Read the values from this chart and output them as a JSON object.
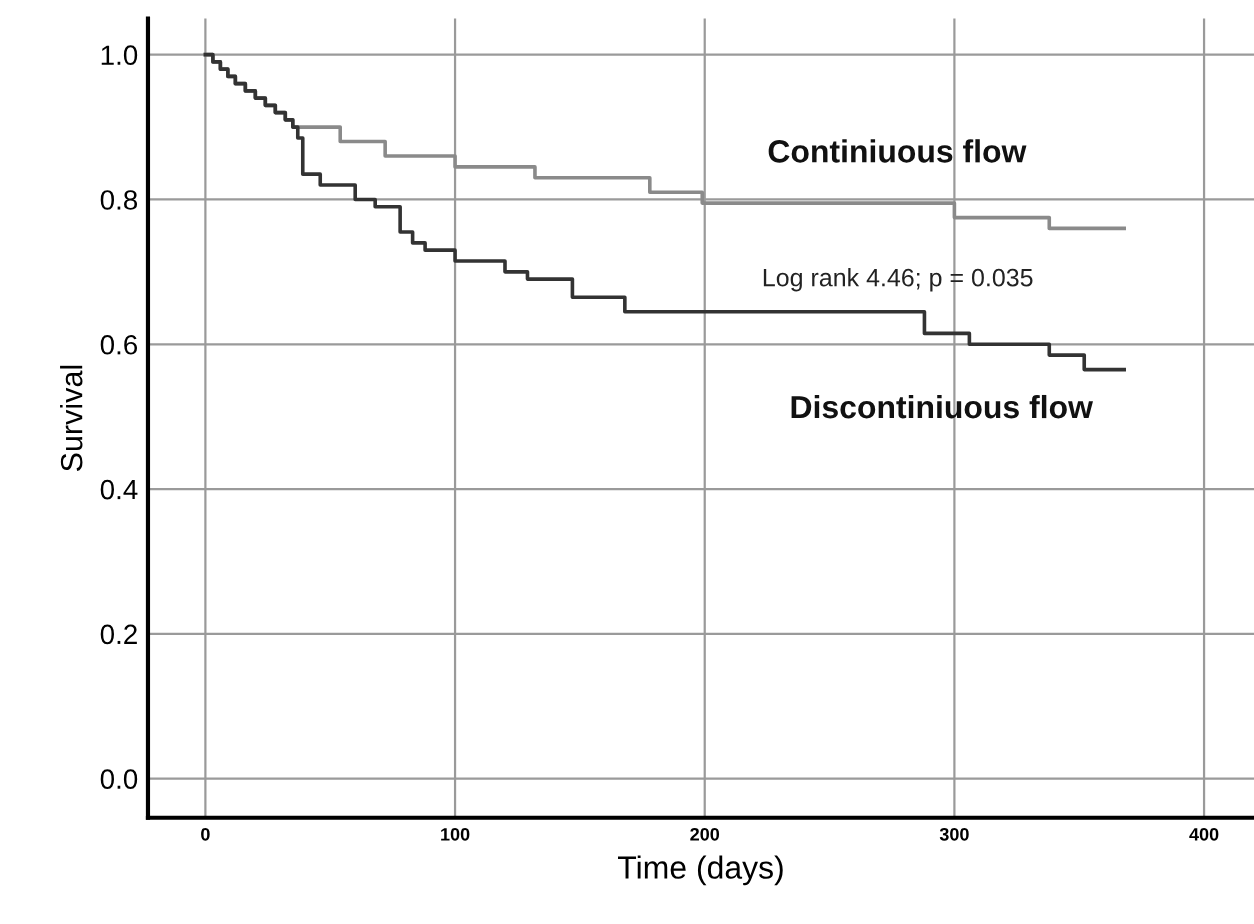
{
  "chart_data": {
    "type": "step",
    "xlabel": "Time (days)",
    "ylabel": "Survival",
    "xlim": [
      -23,
      420
    ],
    "ylim": [
      -0.054,
      1.05
    ],
    "xticks": [
      0,
      100,
      200,
      300,
      400
    ],
    "yticks": [
      {
        "value": 0,
        "label": "0.0"
      },
      0.2,
      0.4,
      0.6,
      0.8,
      {
        "value": 1,
        "label": "1.0"
      }
    ],
    "grid": true,
    "legend": false,
    "marker": "none",
    "line_style": "solid",
    "annotations": [
      "Log rank 4.46; p = 0.035"
    ],
    "series": [
      {
        "name": "Continiuous flow",
        "color": "#8a8a8a",
        "x": [
          0,
          3,
          6,
          9,
          12,
          16,
          20,
          24,
          28,
          32,
          35,
          54,
          72,
          100,
          132,
          178,
          199,
          300,
          338,
          368
        ],
        "values": [
          1.0,
          0.99,
          0.98,
          0.97,
          0.96,
          0.95,
          0.94,
          0.93,
          0.92,
          0.91,
          0.9,
          0.88,
          0.86,
          0.845,
          0.83,
          0.81,
          0.795,
          0.775,
          0.76,
          0.76
        ]
      },
      {
        "name": "Discontiniuous flow",
        "color": "#333333",
        "x": [
          0,
          3,
          6,
          9,
          12,
          16,
          20,
          24,
          28,
          32,
          35,
          37,
          39,
          46,
          60,
          68,
          78,
          83,
          88,
          100,
          120,
          129,
          147,
          168,
          288,
          306,
          338,
          352,
          368
        ],
        "values": [
          1.0,
          0.99,
          0.98,
          0.97,
          0.96,
          0.95,
          0.94,
          0.93,
          0.92,
          0.91,
          0.9,
          0.885,
          0.835,
          0.82,
          0.8,
          0.79,
          0.755,
          0.74,
          0.73,
          0.715,
          0.7,
          0.69,
          0.665,
          0.645,
          0.615,
          0.6,
          0.585,
          0.565,
          0.565
        ]
      }
    ]
  }
}
